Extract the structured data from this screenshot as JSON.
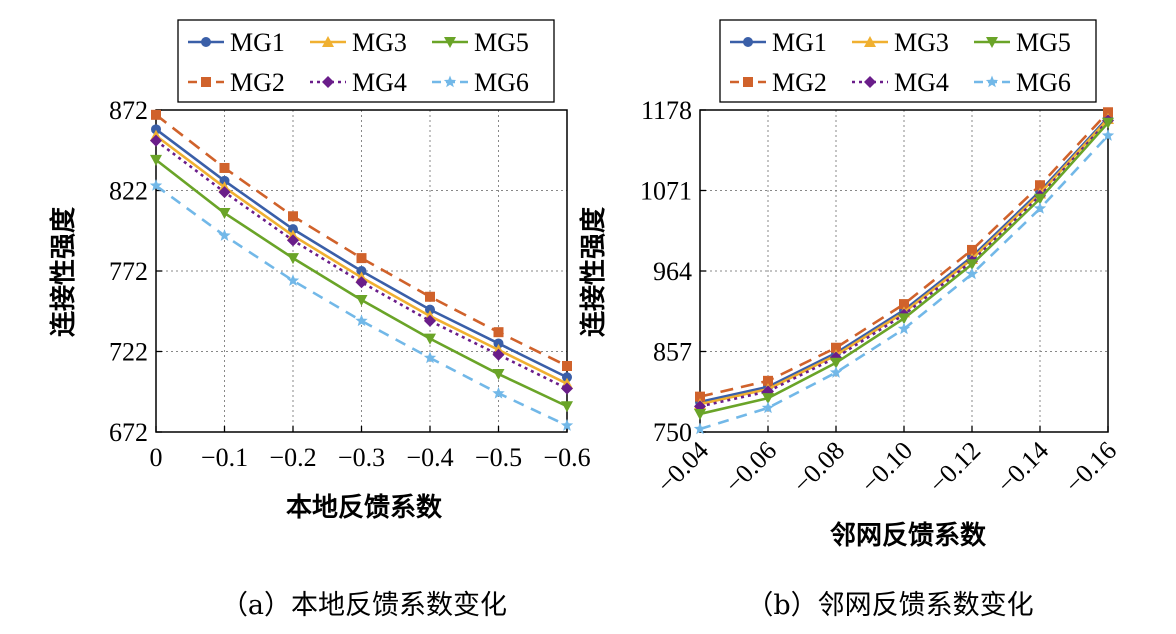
{
  "chart_data": [
    {
      "type": "line",
      "caption": "（a）本地反馈系数变化",
      "xlabel": "本地反馈系数",
      "ylabel": "连接性强度",
      "categories": [
        "0",
        "−0.1",
        "−0.2",
        "−0.3",
        "−0.4",
        "−0.5",
        "−0.6"
      ],
      "x": [
        0,
        -0.1,
        -0.2,
        -0.3,
        -0.4,
        -0.5,
        -0.6
      ],
      "ylim": [
        672,
        872
      ],
      "yticks": [
        "672",
        "722",
        "772",
        "822",
        "872"
      ],
      "ytick_values": [
        672,
        722,
        772,
        822,
        872
      ],
      "grid": true,
      "legend": "top",
      "series": [
        {
          "name": "MG1",
          "values": [
            860,
            828,
            798,
            772,
            748,
            727,
            706
          ]
        },
        {
          "name": "MG2",
          "values": [
            869,
            836,
            806,
            780,
            756,
            734,
            713
          ]
        },
        {
          "name": "MG3",
          "values": [
            856,
            824,
            794,
            768,
            744,
            723,
            702
          ]
        },
        {
          "name": "MG4",
          "values": [
            853,
            821,
            791,
            765,
            741,
            720,
            699
          ]
        },
        {
          "name": "MG5",
          "values": [
            841,
            808,
            780,
            754,
            730,
            708,
            688
          ]
        },
        {
          "name": "MG6",
          "values": [
            825,
            794,
            766,
            741,
            718,
            696,
            676
          ]
        }
      ]
    },
    {
      "type": "line",
      "caption": "（b）邻网反馈系数变化",
      "xlabel": "邻网反馈系数",
      "ylabel": "连接性强度",
      "categories": [
        "−0.04",
        "−0.06",
        "−0.08",
        "−0.10",
        "−0.12",
        "−0.14",
        "−0.16"
      ],
      "x": [
        -0.04,
        -0.06,
        -0.08,
        -0.1,
        -0.12,
        -0.14,
        -0.16
      ],
      "ylim": [
        750,
        1178
      ],
      "yticks": [
        "750",
        "857",
        "964",
        "1071",
        "1178"
      ],
      "ytick_values": [
        750,
        857,
        964,
        1071,
        1178
      ],
      "grid": true,
      "legend": "top",
      "series": [
        {
          "name": "MG1",
          "values": [
            790,
            810,
            855,
            912,
            983,
            1070,
            1168
          ]
        },
        {
          "name": "MG2",
          "values": [
            797,
            818,
            862,
            920,
            992,
            1078,
            1175
          ]
        },
        {
          "name": "MG3",
          "values": [
            787,
            807,
            852,
            909,
            980,
            1067,
            1166
          ]
        },
        {
          "name": "MG4",
          "values": [
            784,
            804,
            849,
            906,
            977,
            1064,
            1164
          ]
        },
        {
          "name": "MG5",
          "values": [
            774,
            795,
            842,
            901,
            973,
            1060,
            1161
          ]
        },
        {
          "name": "MG6",
          "values": [
            754,
            782,
            829,
            887,
            960,
            1047,
            1144
          ]
        }
      ]
    }
  ],
  "colors": {
    "MG1": "#3a5fa8",
    "MG2": "#d0622b",
    "MG3": "#f0b030",
    "MG4": "#6a1d8a",
    "MG5": "#6aa428",
    "MG6": "#72b8e8"
  }
}
